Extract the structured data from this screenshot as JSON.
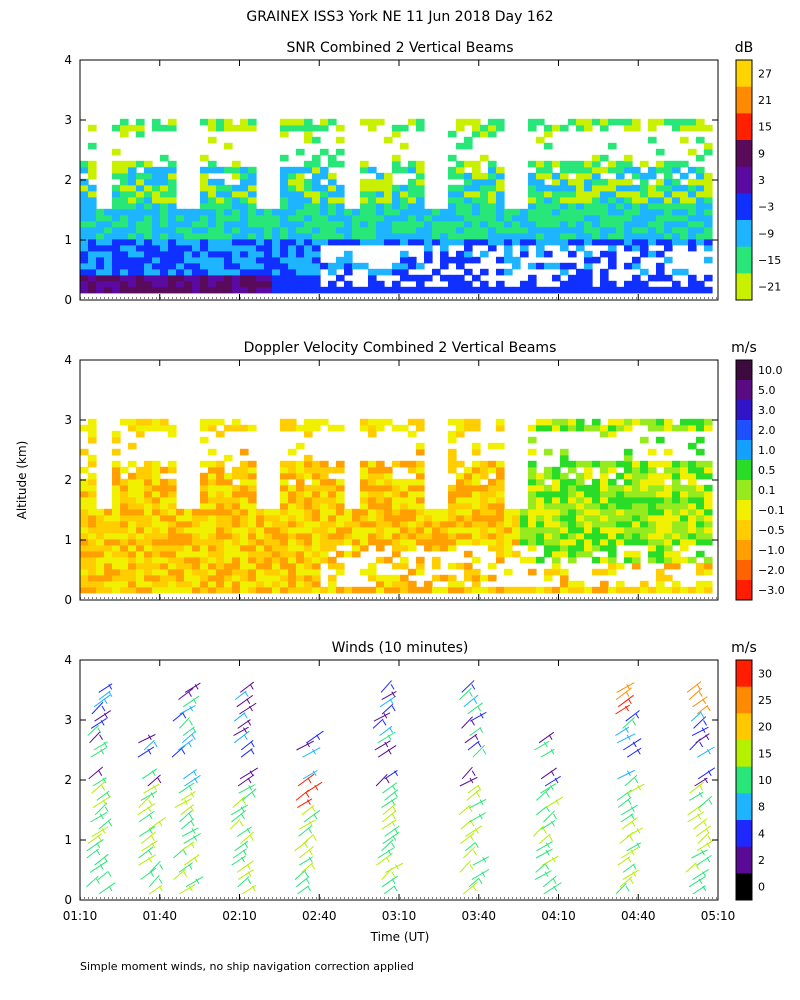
{
  "figure_title": "GRAINEX ISS3 York NE  11 Jun 2018 Day 162",
  "footnote": "Simple moment winds, no ship navigation correction applied",
  "ylabel": "Altitude (km)",
  "xlabel": "Time (UT)",
  "x_ticks": [
    "01:10",
    "01:40",
    "02:10",
    "02:40",
    "03:10",
    "03:40",
    "04:10",
    "04:40",
    "05:10"
  ],
  "y_ticks": [
    "0",
    "1",
    "2",
    "3",
    "4"
  ],
  "chart_data": [
    {
      "type": "heatmap",
      "title": "SNR Combined 2 Vertical Beams",
      "unit": "dB",
      "ylim": [
        0,
        4
      ],
      "colorbar": {
        "labels": [
          "27",
          "21",
          "15",
          "9",
          "3",
          "−3",
          "−9",
          "−15",
          "−21"
        ],
        "colors": [
          "#ffd400",
          "#ff8c00",
          "#ff2000",
          "#5a0a5a",
          "#5a0aa0",
          "#1030ff",
          "#1eb4ff",
          "#28e678",
          "#c8f000"
        ]
      }
    },
    {
      "type": "heatmap",
      "title": "Doppler Velocity Combined 2 Vertical Beams",
      "unit": "m/s",
      "ylim": [
        0,
        4
      ],
      "colorbar": {
        "labels": [
          "10.0",
          "5.0",
          "3.0",
          "2.0",
          "1.0",
          "0.5",
          "0.1",
          "−0.1",
          "−0.5",
          "−1.0",
          "−2.0",
          "−3.0"
        ],
        "colors": [
          "#3c0a3c",
          "#5a0a82",
          "#3214c8",
          "#1e50ff",
          "#14a0ff",
          "#28dc28",
          "#96eb1e",
          "#f0f000",
          "#ffcd00",
          "#ffa000",
          "#ff6400",
          "#ff1e00"
        ]
      }
    },
    {
      "type": "scatter",
      "title": "Winds (10 minutes)",
      "unit": "m/s",
      "ylim": [
        0,
        4
      ],
      "colorbar": {
        "labels": [
          "30",
          "25",
          "20",
          "15",
          "10",
          "8",
          "4",
          "2",
          "0"
        ],
        "colors": [
          "#ff1e00",
          "#ff8c00",
          "#ffc800",
          "#b4f000",
          "#28e678",
          "#1eb4ff",
          "#1e28ff",
          "#5a0a96",
          "#000000"
        ]
      }
    }
  ]
}
